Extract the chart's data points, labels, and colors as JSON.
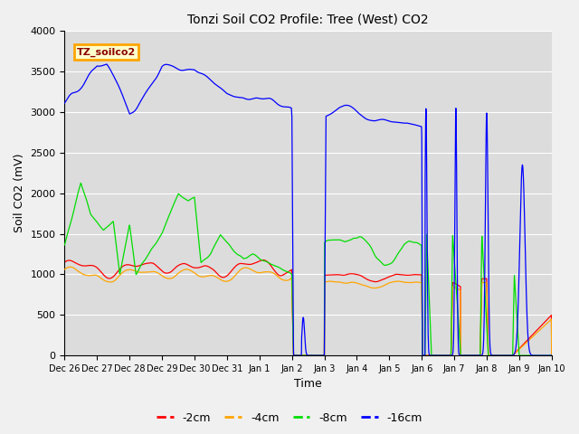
{
  "title": "Tonzi Soil CO2 Profile: Tree (West) CO2",
  "xlabel": "Time",
  "ylabel": "Soil CO2 (mV)",
  "ylim": [
    0,
    4000
  ],
  "plot_bg": "#dcdcdc",
  "fig_bg": "#f0f0f0",
  "legend_label": "TZ_soilco2",
  "legend_box_fc": "#ffffcc",
  "legend_box_ec": "#ffa500",
  "legend_text_color": "#8b0000",
  "series_colors": {
    "2cm": "#ff0000",
    "4cm": "#ffa500",
    "8cm": "#00dd00",
    "16cm": "#0000ff"
  },
  "tick_labels": [
    "Dec 26",
    "Dec 27",
    "Dec 28",
    "Dec 29",
    "Dec 30",
    "Dec 31",
    "Jan 1",
    "Jan 2",
    "Jan 3",
    "Jan 4",
    "Jan 5",
    "Jan 6",
    "Jan 7",
    "Jan 8",
    "Jan 9",
    "Jan 10"
  ],
  "grid_color": "#ffffff",
  "yticks": [
    0,
    500,
    1000,
    1500,
    2000,
    2500,
    3000,
    3500,
    4000
  ]
}
